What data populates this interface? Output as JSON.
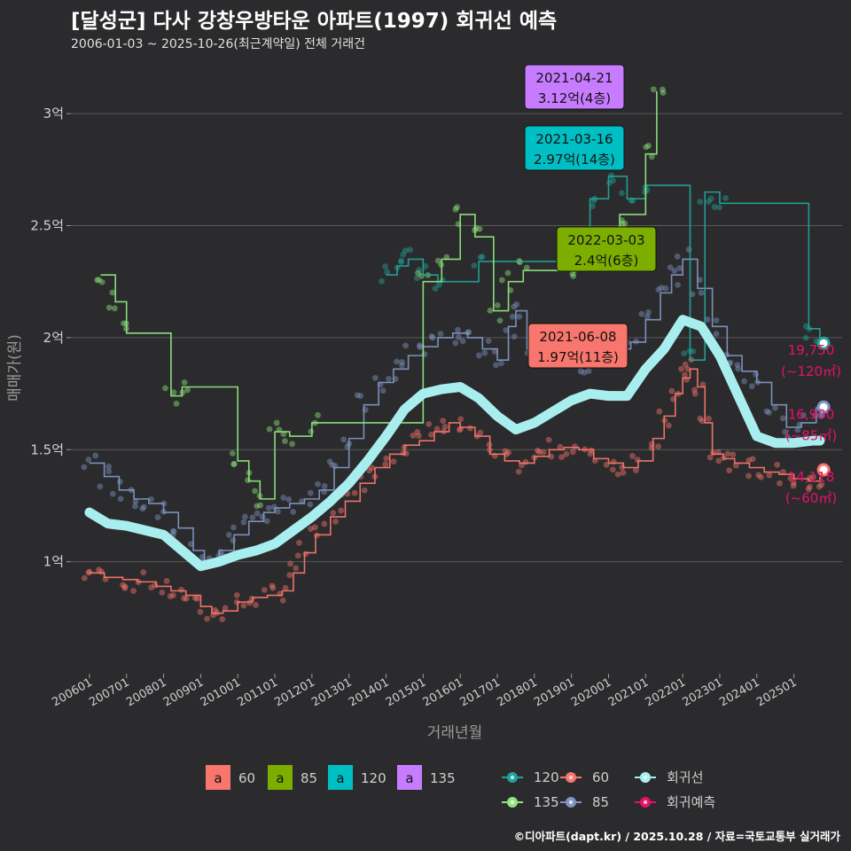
{
  "title": "[달성군] 다사 강창우방타운 아파트(1997) 회귀선 예측",
  "subtitle": "2006-01-03 ~ 2025-10-26(최근계약일) 전체 거래건",
  "caption": "©디아파트(dapt.kr) / 2025.10.28 / 자료=국토교통부 실거래가",
  "chart_data": {
    "type": "scatter",
    "xlabel": "거래년월",
    "ylabel": "매매가(원)",
    "xlim": [
      2005.5,
      2026.3
    ],
    "ylim": [
      0.5,
      3.25
    ],
    "y_ticks": [
      {
        "v": 1,
        "label": "1억"
      },
      {
        "v": 1.5,
        "label": "1.5억"
      },
      {
        "v": 2,
        "label": "2억"
      },
      {
        "v": 2.5,
        "label": "2.5억"
      },
      {
        "v": 3,
        "label": "3억"
      }
    ],
    "x_ticks": [
      {
        "v": 2006,
        "label": "200601"
      },
      {
        "v": 2007,
        "label": "200701"
      },
      {
        "v": 2008,
        "label": "200801"
      },
      {
        "v": 2009,
        "label": "200901"
      },
      {
        "v": 2010,
        "label": "201001"
      },
      {
        "v": 2011,
        "label": "201101"
      },
      {
        "v": 2012,
        "label": "201201"
      },
      {
        "v": 2013,
        "label": "201301"
      },
      {
        "v": 2014,
        "label": "201401"
      },
      {
        "v": 2015,
        "label": "201501"
      },
      {
        "v": 2016,
        "label": "201601"
      },
      {
        "v": 2017,
        "label": "201701"
      },
      {
        "v": 2018,
        "label": "201801"
      },
      {
        "v": 2019,
        "label": "201901"
      },
      {
        "v": 2020,
        "label": "202001"
      },
      {
        "v": 2021,
        "label": "202101"
      },
      {
        "v": 2022,
        "label": "202201"
      },
      {
        "v": 2023,
        "label": "202301"
      },
      {
        "v": 2024,
        "label": "202401"
      },
      {
        "v": 2025,
        "label": "202501"
      }
    ],
    "series": [
      {
        "name": "60",
        "color": "#f8766d",
        "points": [
          [
            2006.0,
            0.95
          ],
          [
            2006.4,
            0.93
          ],
          [
            2006.9,
            0.92
          ],
          [
            2007.3,
            0.91
          ],
          [
            2007.8,
            0.89
          ],
          [
            2008.2,
            0.87
          ],
          [
            2008.6,
            0.85
          ],
          [
            2009.0,
            0.8
          ],
          [
            2009.3,
            0.77
          ],
          [
            2009.6,
            0.78
          ],
          [
            2010.0,
            0.82
          ],
          [
            2010.4,
            0.84
          ],
          [
            2010.8,
            0.85
          ],
          [
            2011.2,
            0.87
          ],
          [
            2011.5,
            0.95
          ],
          [
            2011.8,
            1.04
          ],
          [
            2012.1,
            1.12
          ],
          [
            2012.5,
            1.2
          ],
          [
            2012.9,
            1.27
          ],
          [
            2013.3,
            1.35
          ],
          [
            2013.7,
            1.42
          ],
          [
            2014.1,
            1.48
          ],
          [
            2014.5,
            1.52
          ],
          [
            2014.9,
            1.54
          ],
          [
            2015.3,
            1.58
          ],
          [
            2015.7,
            1.62
          ],
          [
            2016.0,
            1.6
          ],
          [
            2016.4,
            1.56
          ],
          [
            2016.8,
            1.48
          ],
          [
            2017.2,
            1.45
          ],
          [
            2017.6,
            1.44
          ],
          [
            2018.0,
            1.47
          ],
          [
            2018.4,
            1.5
          ],
          [
            2018.8,
            1.51
          ],
          [
            2019.2,
            1.5
          ],
          [
            2019.6,
            1.46
          ],
          [
            2020.0,
            1.44
          ],
          [
            2020.4,
            1.42
          ],
          [
            2020.8,
            1.45
          ],
          [
            2021.2,
            1.55
          ],
          [
            2021.5,
            1.65
          ],
          [
            2021.8,
            1.75
          ],
          [
            2022.0,
            1.82
          ],
          [
            2022.2,
            1.86
          ],
          [
            2022.4,
            1.78
          ],
          [
            2022.6,
            1.62
          ],
          [
            2022.8,
            1.48
          ],
          [
            2023.1,
            1.46
          ],
          [
            2023.4,
            1.44
          ],
          [
            2023.8,
            1.42
          ],
          [
            2024.2,
            1.4
          ],
          [
            2024.6,
            1.39
          ],
          [
            2025.0,
            1.37
          ],
          [
            2025.4,
            1.36
          ],
          [
            2025.7,
            1.38
          ]
        ]
      },
      {
        "name": "85",
        "color": "#7f96c2",
        "points": [
          [
            2006.0,
            1.44
          ],
          [
            2006.4,
            1.38
          ],
          [
            2006.8,
            1.32
          ],
          [
            2007.2,
            1.28
          ],
          [
            2007.6,
            1.26
          ],
          [
            2008.0,
            1.22
          ],
          [
            2008.4,
            1.15
          ],
          [
            2008.8,
            1.05
          ],
          [
            2009.1,
            1.0
          ],
          [
            2009.5,
            1.05
          ],
          [
            2009.9,
            1.12
          ],
          [
            2010.3,
            1.18
          ],
          [
            2010.7,
            1.22
          ],
          [
            2011.0,
            1.24
          ],
          [
            2011.4,
            1.26
          ],
          [
            2011.8,
            1.28
          ],
          [
            2012.2,
            1.32
          ],
          [
            2012.6,
            1.42
          ],
          [
            2013.0,
            1.55
          ],
          [
            2013.4,
            1.7
          ],
          [
            2013.8,
            1.8
          ],
          [
            2014.2,
            1.86
          ],
          [
            2014.6,
            1.92
          ],
          [
            2015.0,
            1.96
          ],
          [
            2015.4,
            2.0
          ],
          [
            2015.8,
            2.02
          ],
          [
            2016.2,
            2.0
          ],
          [
            2016.6,
            1.95
          ],
          [
            2017.0,
            1.9
          ],
          [
            2017.3,
            2.05
          ],
          [
            2017.5,
            2.12
          ],
          [
            2017.8,
            1.95
          ],
          [
            2018.2,
            1.92
          ],
          [
            2018.6,
            1.94
          ],
          [
            2019.0,
            1.92
          ],
          [
            2019.4,
            1.88
          ],
          [
            2019.8,
            1.92
          ],
          [
            2020.2,
            1.95
          ],
          [
            2020.6,
            1.98
          ],
          [
            2021.0,
            2.08
          ],
          [
            2021.4,
            2.2
          ],
          [
            2021.7,
            2.28
          ],
          [
            2022.0,
            2.35
          ],
          [
            2022.4,
            2.22
          ],
          [
            2022.8,
            2.05
          ],
          [
            2023.2,
            1.92
          ],
          [
            2023.6,
            1.85
          ],
          [
            2024.0,
            1.8
          ],
          [
            2024.4,
            1.7
          ],
          [
            2024.8,
            1.6
          ],
          [
            2025.2,
            1.62
          ],
          [
            2025.6,
            1.69
          ]
        ]
      },
      {
        "name": "120",
        "color": "#22a39a",
        "points": [
          [
            2014.0,
            2.28
          ],
          [
            2014.3,
            2.32
          ],
          [
            2014.6,
            2.35
          ],
          [
            2015.0,
            2.28
          ],
          [
            2015.4,
            2.25
          ],
          [
            2016.5,
            2.34
          ],
          [
            2019.5,
            2.62
          ],
          [
            2020.0,
            2.72
          ],
          [
            2020.5,
            2.62
          ],
          [
            2021.0,
            2.68
          ],
          [
            2022.2,
            1.9
          ],
          [
            2022.6,
            2.65
          ],
          [
            2023.0,
            2.6
          ],
          [
            2025.4,
            2.04
          ],
          [
            2025.7,
            1.98
          ]
        ]
      },
      {
        "name": "135",
        "color": "#8ee67d",
        "points": [
          [
            2006.3,
            2.28
          ],
          [
            2006.7,
            2.16
          ],
          [
            2007.0,
            2.02
          ],
          [
            2008.2,
            1.74
          ],
          [
            2008.5,
            1.78
          ],
          [
            2010.0,
            1.45
          ],
          [
            2010.3,
            1.36
          ],
          [
            2010.6,
            1.28
          ],
          [
            2011.0,
            1.58
          ],
          [
            2011.4,
            1.56
          ],
          [
            2012.0,
            1.62
          ],
          [
            2015.0,
            2.25
          ],
          [
            2015.5,
            2.35
          ],
          [
            2016.0,
            2.55
          ],
          [
            2016.4,
            2.45
          ],
          [
            2016.9,
            2.12
          ],
          [
            2017.3,
            2.25
          ],
          [
            2017.7,
            2.3
          ],
          [
            2019.2,
            2.3
          ],
          [
            2020.3,
            2.55
          ],
          [
            2021.0,
            2.82
          ],
          [
            2021.3,
            3.1
          ]
        ]
      }
    ],
    "regression": {
      "name": "회귀선",
      "color": "#a9eeee",
      "points": [
        [
          2006.0,
          1.22
        ],
        [
          2006.5,
          1.17
        ],
        [
          2007.0,
          1.16
        ],
        [
          2007.5,
          1.14
        ],
        [
          2008.0,
          1.12
        ],
        [
          2008.5,
          1.05
        ],
        [
          2009.0,
          0.98
        ],
        [
          2009.5,
          1.0
        ],
        [
          2010.0,
          1.03
        ],
        [
          2010.5,
          1.05
        ],
        [
          2011.0,
          1.08
        ],
        [
          2011.5,
          1.14
        ],
        [
          2012.0,
          1.2
        ],
        [
          2012.5,
          1.27
        ],
        [
          2013.0,
          1.35
        ],
        [
          2013.5,
          1.45
        ],
        [
          2014.0,
          1.56
        ],
        [
          2014.5,
          1.68
        ],
        [
          2015.0,
          1.75
        ],
        [
          2015.5,
          1.77
        ],
        [
          2016.0,
          1.78
        ],
        [
          2016.5,
          1.73
        ],
        [
          2017.0,
          1.65
        ],
        [
          2017.5,
          1.59
        ],
        [
          2018.0,
          1.62
        ],
        [
          2018.5,
          1.67
        ],
        [
          2019.0,
          1.72
        ],
        [
          2019.5,
          1.75
        ],
        [
          2020.0,
          1.74
        ],
        [
          2020.5,
          1.74
        ],
        [
          2021.0,
          1.86
        ],
        [
          2021.5,
          1.95
        ],
        [
          2022.0,
          2.08
        ],
        [
          2022.5,
          2.05
        ],
        [
          2023.0,
          1.92
        ],
        [
          2023.5,
          1.74
        ],
        [
          2024.0,
          1.56
        ],
        [
          2024.5,
          1.53
        ],
        [
          2025.0,
          1.53
        ],
        [
          2025.5,
          1.54
        ],
        [
          2025.7,
          1.54
        ]
      ]
    },
    "predictions": [
      {
        "label": "19,750",
        "sub": "(~120㎡)",
        "value": 1.975,
        "x": 2025.8,
        "ring": "#22a39a"
      },
      {
        "label": "16,900",
        "sub": "(~85㎡)",
        "value": 1.69,
        "x": 2025.8,
        "ring": "#7f96c2"
      },
      {
        "label": "14,118",
        "sub": "(~60㎡)",
        "value": 1.41,
        "x": 2025.8,
        "ring": "#f8766d"
      }
    ],
    "callouts": [
      {
        "date": "2021-04-21",
        "price": "3.12억(4층)",
        "color": "#c77cff",
        "x": 2021.3,
        "y": 3.12
      },
      {
        "date": "2021-03-16",
        "price": "2.97억(14층)",
        "color": "#00bfc4",
        "x": 2021.2,
        "y": 2.97
      },
      {
        "date": "2022-03-03",
        "price": "2.4억(6층)",
        "color": "#7cae00",
        "x": 2022.2,
        "y": 2.4
      },
      {
        "date": "2021-06-08",
        "price": "1.97억(11층)",
        "color": "#f8766d",
        "x": 2021.4,
        "y": 1.97
      }
    ],
    "legend_fill": [
      {
        "key": "a",
        "label": "60",
        "color": "#f8766d"
      },
      {
        "key": "a",
        "label": "85",
        "color": "#7cae00"
      },
      {
        "key": "a",
        "label": "120",
        "color": "#00bfc4"
      },
      {
        "key": "a",
        "label": "135",
        "color": "#c77cff"
      }
    ],
    "legend_lines": [
      {
        "label": "120",
        "color": "#22a39a"
      },
      {
        "label": "60",
        "color": "#f8766d"
      },
      {
        "label": "회귀선",
        "color": "#a9eeee"
      },
      {
        "label": "135",
        "color": "#8ee67d"
      },
      {
        "label": "85",
        "color": "#7f96c2"
      },
      {
        "label": "회귀예측",
        "color": "#e8116a"
      }
    ]
  },
  "colors": {
    "background": "#2b2b2d",
    "grid": "#5a5a5a",
    "prediction_text": "#e8116a"
  }
}
